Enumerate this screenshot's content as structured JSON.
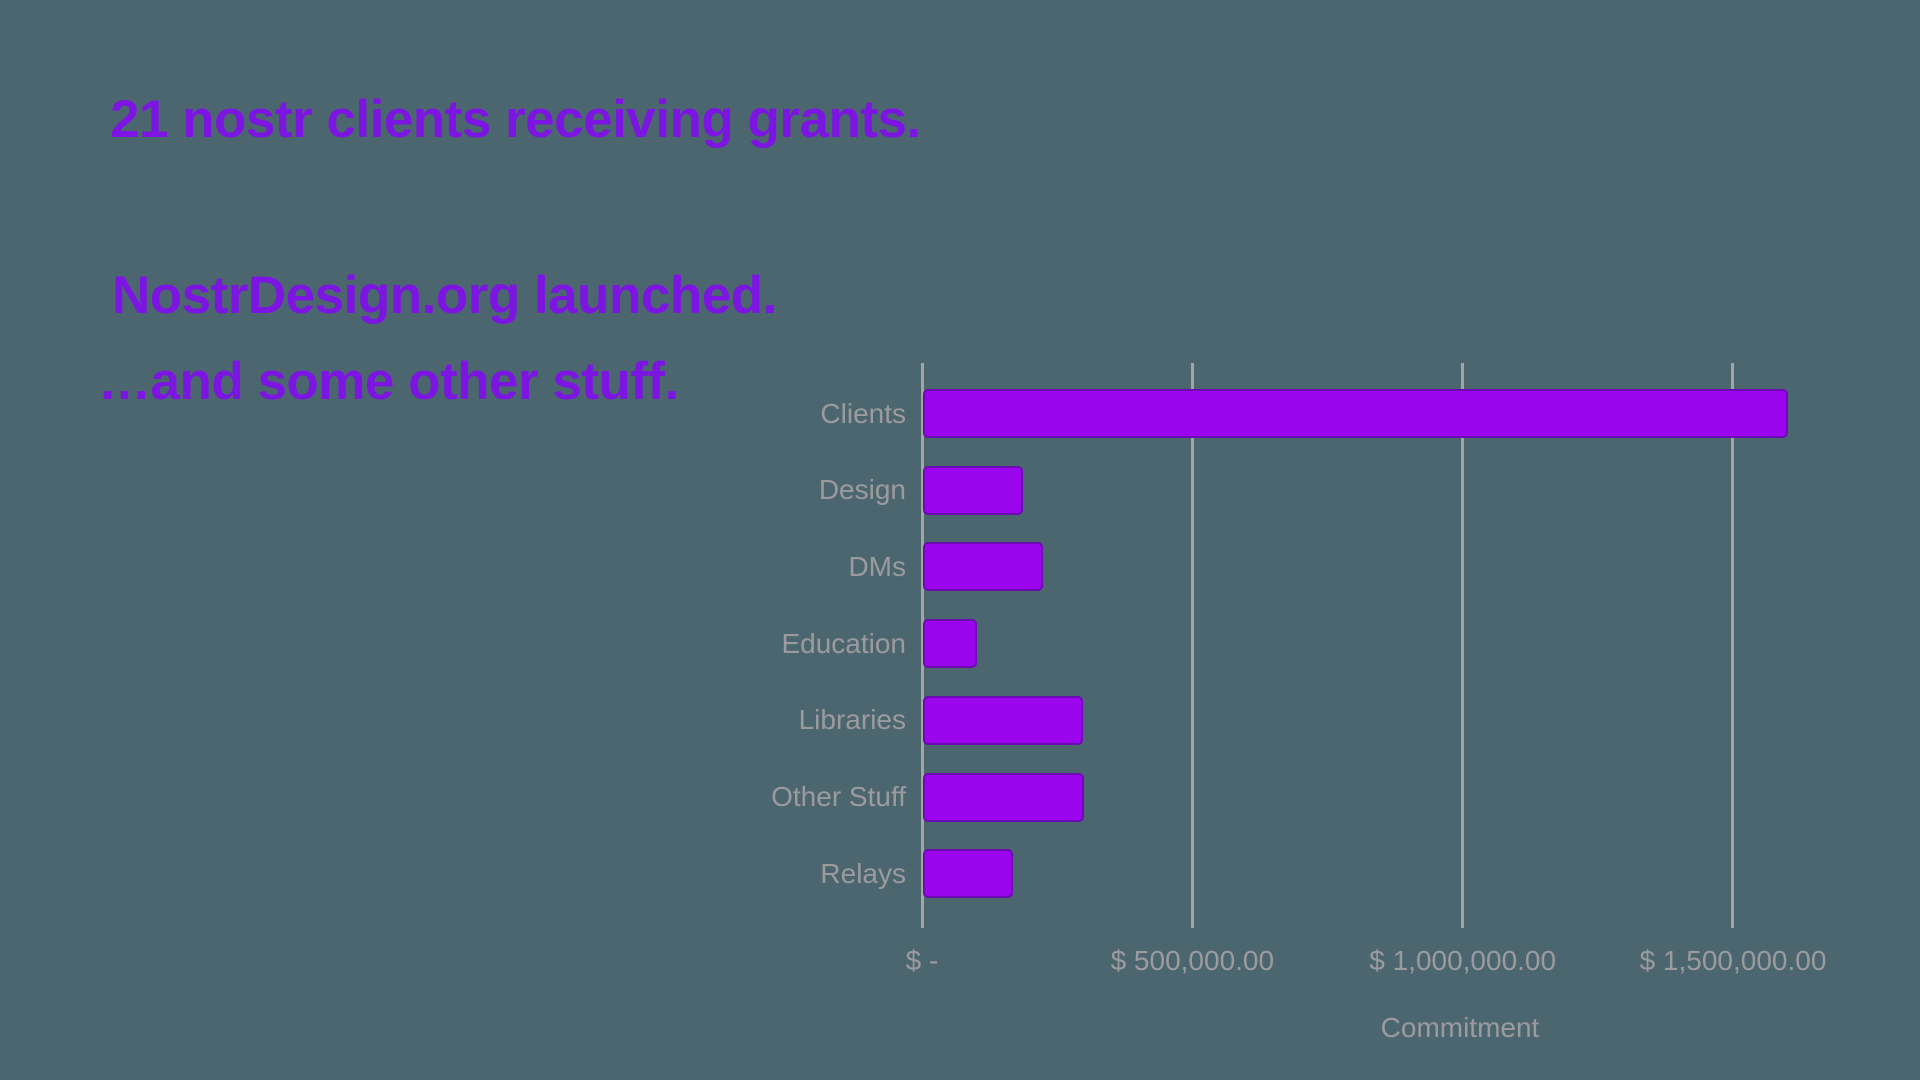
{
  "slide": {
    "headline1": "21 nostr clients receiving grants.",
    "headline2": "NostrDesign.org launched.",
    "headline3": "…and some other stuff."
  },
  "colors": {
    "background": "#4C6670",
    "headline_purple": "#7D15E2",
    "bar_fill": "#9A05EE",
    "bar_border": "#6B0BB2",
    "grid_line": "#A5A5A5",
    "label_gray": "#9B9B9E"
  },
  "chart_data": {
    "type": "bar",
    "orientation": "horizontal",
    "title": "",
    "xlabel": "Commitment",
    "ylabel": "",
    "categories": [
      "Clients",
      "Design",
      "DMs",
      "Education",
      "Libraries",
      "Other Stuff",
      "Relays"
    ],
    "values": [
      1600000,
      185000,
      222000,
      100000,
      296000,
      298000,
      167000
    ],
    "x_ticks": [
      {
        "value": 0,
        "label": "$ -"
      },
      {
        "value": 500000,
        "label": "$ 500,000.00"
      },
      {
        "value": 1000000,
        "label": "$ 1,000,000.00"
      },
      {
        "value": 1500000,
        "label": "$ 1,500,000.00"
      }
    ],
    "xlim": [
      0,
      1730000
    ],
    "grid": true,
    "legend": false
  }
}
